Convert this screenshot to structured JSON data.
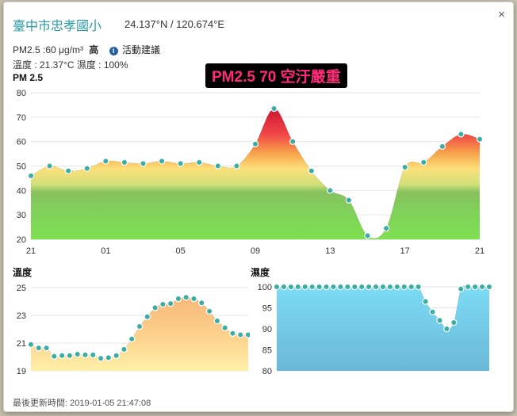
{
  "station": {
    "name": "臺中市忠孝國小",
    "coords": "24.137°N / 120.674°E",
    "close_glyph": "×"
  },
  "readings": {
    "pm25_text": "PM2.5 :60 μg/m³",
    "level": "高",
    "advice_icon": "info-icon",
    "advice_label": "活動建議",
    "temp_humidity": "溫度 : 21.37°C 濕度 : 100%"
  },
  "alert_text": "PM2.5 70 空汙嚴重",
  "colors": {
    "accent": "#2a9aa3",
    "alert_text": "#ff2a7a",
    "marker": "#3aaea4",
    "temp_fill": "#fdc882",
    "humidity_fill": "#79d2ea"
  },
  "pm_chart_title": "PM 2.5",
  "temp_chart_title": "溫度",
  "humidity_chart_title": "濕度",
  "updated": "最後更新時間: 2019-01-05 21:47:08",
  "chart_data": [
    {
      "type": "area",
      "title": "PM 2.5",
      "xlabel": "",
      "ylabel": "",
      "x_ticks": [
        "21",
        "01",
        "05",
        "09",
        "13",
        "17",
        "21"
      ],
      "y_ticks": [
        20,
        30,
        40,
        50,
        60,
        70,
        80
      ],
      "ylim": [
        20,
        80
      ],
      "grid": true,
      "values": [
        46,
        50,
        48,
        49,
        52,
        51.5,
        51,
        52,
        51,
        51.5,
        50,
        50,
        59,
        73.5,
        60,
        48,
        40,
        36,
        21.5,
        24.5,
        49.5,
        51.5,
        58,
        63,
        61
      ]
    },
    {
      "type": "area",
      "title": "溫度",
      "xlabel": "",
      "ylabel": "",
      "y_ticks": [
        19,
        21,
        23,
        25
      ],
      "ylim": [
        19,
        25
      ],
      "grid": true,
      "values": [
        20.9,
        20.65,
        20.65,
        20.05,
        20.1,
        20.1,
        20.2,
        20.15,
        20.15,
        19.9,
        19.95,
        20.1,
        20.55,
        21.3,
        22.2,
        22.9,
        23.55,
        23.8,
        23.85,
        24.2,
        24.3,
        24.2,
        23.9,
        23.3,
        22.6,
        22.1,
        21.7,
        21.6,
        21.6
      ]
    },
    {
      "type": "area",
      "title": "濕度",
      "xlabel": "",
      "ylabel": "",
      "y_ticks": [
        80,
        85,
        90,
        95,
        100
      ],
      "ylim": [
        80,
        100
      ],
      "grid": true,
      "values": [
        100,
        100,
        100,
        100,
        100,
        100,
        100,
        100,
        100,
        100,
        100,
        100,
        100,
        100,
        100,
        100,
        100,
        100,
        100,
        100,
        100,
        96.5,
        94,
        92,
        90,
        91.5,
        99.5,
        100,
        100,
        100,
        100
      ]
    }
  ]
}
